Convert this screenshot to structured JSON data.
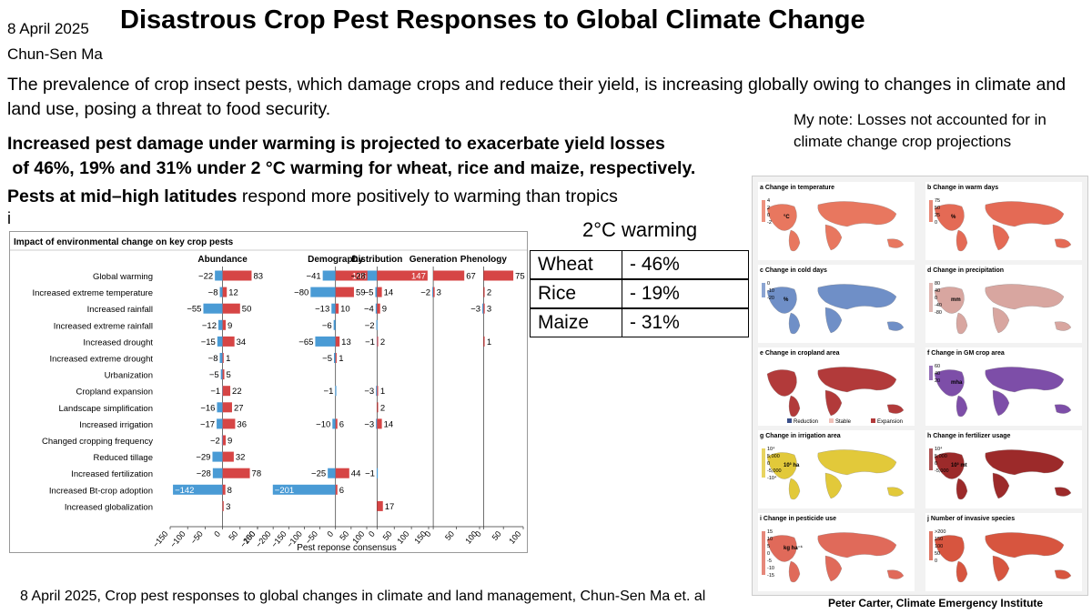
{
  "header": {
    "date": "8 April 2025",
    "author": "Chun-Sen Ma",
    "title": "Disastrous  Crop Pest Responses to Global Climate Change"
  },
  "intro_text": "The prevalence of crop insect pests, which damage crops and reduce their yield, is increasing globally owing to changes in climate and land use, posing a threat to food security.",
  "bold_lines": [
    "Increased pest damage under warming is projected to exacerbate yield losses",
    " of 46%, 19% and 31% under 2 °C warming for wheat, rice and maize, respectively."
  ],
  "latitude_line": {
    "bold": "Pests at mid–high latitudes",
    "rest": " respond more positively to warming than tropics"
  },
  "stray_char": "i",
  "my_note": "My note: Losses not accounted for in climate change crop projections",
  "warming_table": {
    "title": "2°C warming",
    "rows": [
      {
        "crop": "Wheat",
        "loss": "- 46%"
      },
      {
        "crop": "Rice",
        "loss": "- 19%"
      },
      {
        "crop": "Maize",
        "loss": "- 31%"
      }
    ]
  },
  "chart_data": {
    "type": "bar",
    "title": "Impact of environmental change on key crop pests",
    "xlabel": "Pest reponse consensus",
    "categories": [
      "Global warming",
      "Increased extreme temperature",
      "Increased rainfall",
      "Increased extreme rainfall",
      "Increased drought",
      "Increased extreme drought",
      "Urbanization",
      "Cropland expansion",
      "Landscape simplification",
      "Increased irrigation",
      "Changed cropping frequency",
      "Reduced tillage",
      "Increased fertilization",
      "Increased Bt-crop adoption",
      "Increased globalization"
    ],
    "panels": [
      {
        "name": "Abundance",
        "ticks": [
          "−150",
          "−100",
          "−50",
          "0",
          "50",
          "100"
        ],
        "xlim": [
          -150,
          100
        ],
        "neg": [
          -22,
          -8,
          -55,
          -12,
          -15,
          -8,
          -5,
          -1,
          -16,
          -17,
          -2,
          -29,
          -28,
          -142,
          null
        ],
        "pos": [
          83,
          12,
          50,
          9,
          34,
          1,
          5,
          22,
          27,
          36,
          9,
          32,
          78,
          8,
          3
        ]
      },
      {
        "name": "Demography",
        "ticks": [
          "−250",
          "−200",
          "−150",
          "−100",
          "−50",
          "0",
          "50",
          "100"
        ],
        "xlim": [
          -250,
          100
        ],
        "neg": [
          -41,
          -80,
          -13,
          -6,
          -65,
          -5,
          null,
          -1,
          null,
          -10,
          null,
          null,
          -25,
          -201,
          null
        ],
        "pos": [
          105,
          59,
          10,
          null,
          13,
          1,
          null,
          null,
          null,
          6,
          null,
          null,
          44,
          6,
          null
        ]
      },
      {
        "name": "Distribution",
        "ticks": [
          "0",
          "50",
          "100",
          "150"
        ],
        "xlim": [
          -30,
          150
        ],
        "neg": [
          -28,
          -5,
          -4,
          -2,
          -1,
          null,
          null,
          -3,
          null,
          -3,
          null,
          null,
          -1,
          null,
          null
        ],
        "pos": [
          147,
          14,
          9,
          null,
          2,
          null,
          null,
          1,
          2,
          14,
          null,
          null,
          null,
          null,
          17
        ]
      },
      {
        "name": "Generation",
        "ticks": [
          "0",
          "50",
          "100"
        ],
        "xlim": [
          -10,
          100
        ],
        "neg": [
          null,
          -2,
          null,
          null,
          null,
          null,
          null,
          null,
          null,
          null,
          null,
          null,
          null,
          null,
          null
        ],
        "pos": [
          67,
          3,
          null,
          null,
          null,
          null,
          null,
          null,
          null,
          null,
          null,
          null,
          null,
          null,
          null
        ]
      },
      {
        "name": "Phenology",
        "ticks": [
          "0",
          "50",
          "100"
        ],
        "xlim": [
          -10,
          100
        ],
        "neg": [
          null,
          null,
          -3,
          null,
          null,
          null,
          null,
          null,
          null,
          null,
          null,
          null,
          null,
          null,
          null
        ],
        "pos": [
          75,
          2,
          3,
          null,
          1,
          null,
          null,
          null,
          null,
          null,
          null,
          null,
          null,
          null,
          null
        ]
      }
    ],
    "colors": {
      "positive": "#d64545",
      "negative": "#4a9bd5"
    },
    "grid": false
  },
  "maps": {
    "panels": [
      {
        "label": "a",
        "title": "Change in temperature",
        "unit": "°C",
        "scale": [
          "4",
          "2",
          "0",
          "-2"
        ]
      },
      {
        "label": "b",
        "title": "Change in warm days",
        "unit": "%",
        "scale": [
          "75",
          "50",
          "25",
          "0"
        ]
      },
      {
        "label": "c",
        "title": "Change in cold days",
        "unit": "%",
        "scale": [
          "0",
          "-10",
          "-20"
        ]
      },
      {
        "label": "d",
        "title": "Change in precipitation",
        "unit": "mm",
        "scale": [
          "80",
          "40",
          "0",
          "-40",
          "-80"
        ]
      },
      {
        "label": "e",
        "title": "Change in cropland area",
        "unit": "",
        "scale": []
      },
      {
        "label": "f",
        "title": "Change in GM crop area",
        "unit": "mha",
        "scale": [
          "60",
          "40",
          "20"
        ]
      },
      {
        "label": "g",
        "title": "Change in irrigation area",
        "unit": "10³ ha",
        "scale": [
          "10⁴",
          "5,000",
          "0",
          "-5,000",
          "-10⁴"
        ]
      },
      {
        "label": "h",
        "title": "Change in fertilizer usage",
        "unit": "10³ mt",
        "scale": [
          "10⁴",
          "5,000",
          "0",
          "-5,000"
        ]
      },
      {
        "label": "i",
        "title": "Change in pesticide use",
        "unit": "kg ha⁻¹",
        "scale": [
          "15",
          "10",
          "5",
          "0",
          "-5",
          "-10",
          "-15"
        ]
      },
      {
        "label": "j",
        "title": "Number of invasive species",
        "unit": "",
        "scale": [
          ">200",
          "150",
          "100",
          "50",
          "0"
        ]
      }
    ],
    "cropland_legend": [
      "Reduction",
      "Stable",
      "Expansion"
    ]
  },
  "footer_citation": "8 April 2025, Crop pest responses to global changes in climate and land management, Chun-Sen Ma et. al",
  "credit": "Peter Carter, Climate Emergency Institute"
}
